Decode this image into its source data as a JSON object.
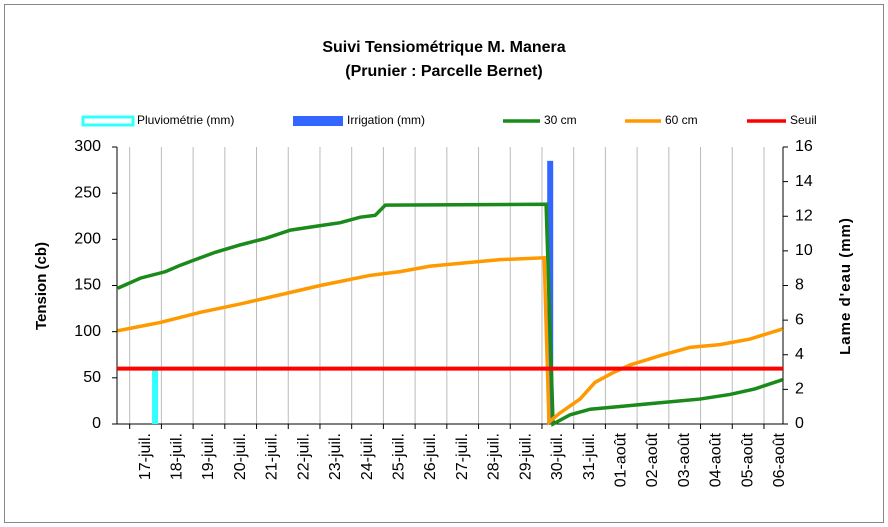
{
  "chart_data": {
    "type": "line",
    "title": "Suivi Tensiométrique M. Manera",
    "subtitle": "(Prunier : Parcelle Bernet)",
    "ylabel": "Tension (cb)",
    "y2label": "Lame d'eau (mm)",
    "xlim": [
      197.1,
      218.1
    ],
    "xticks": [
      {
        "value": 198,
        "label": "17-juil."
      },
      {
        "value": 199,
        "label": "18-juil."
      },
      {
        "value": 200,
        "label": "19-juil."
      },
      {
        "value": 201,
        "label": "20-juil."
      },
      {
        "value": 202,
        "label": "21-juil."
      },
      {
        "value": 203,
        "label": "22-juil."
      },
      {
        "value": 204,
        "label": "23-juil."
      },
      {
        "value": 205,
        "label": "24-juil."
      },
      {
        "value": 206,
        "label": "25-juil."
      },
      {
        "value": 207,
        "label": "26-juil."
      },
      {
        "value": 208,
        "label": "27-juil."
      },
      {
        "value": 209,
        "label": "28-juil."
      },
      {
        "value": 210,
        "label": "29-juil."
      },
      {
        "value": 211,
        "label": "30-juil."
      },
      {
        "value": 212,
        "label": "31-juil."
      },
      {
        "value": 213,
        "label": "01-août"
      },
      {
        "value": 214,
        "label": "02-août"
      },
      {
        "value": 215,
        "label": "03-août"
      },
      {
        "value": 216,
        "label": "04-août"
      },
      {
        "value": 217,
        "label": "05-août"
      },
      {
        "value": 218,
        "label": "06-août"
      }
    ],
    "ylim": [
      0,
      300
    ],
    "yticks": [
      0,
      50,
      100,
      150,
      200,
      250,
      300
    ],
    "y2lim": [
      0,
      16
    ],
    "y2ticks": [
      0,
      2,
      4,
      6,
      8,
      10,
      12,
      14,
      16
    ],
    "grid": "x",
    "legend": "top",
    "series": [
      {
        "name": "Pluviométrie (mm)",
        "type": "bar",
        "axis": "y2",
        "color": "#33ffff",
        "x": [
          198.3
        ],
        "values": [
          3.1
        ]
      },
      {
        "name": "Irrigation (mm)",
        "type": "bar",
        "axis": "y2",
        "color": "#3366ff",
        "x": [
          210.76
        ],
        "values": [
          15.2
        ]
      },
      {
        "name": "30 cm",
        "type": "line",
        "color": "#1a8a1a",
        "x": [
          197.12,
          197.84,
          198.63,
          199.1,
          199.57,
          200.2,
          200.99,
          201.78,
          202.57,
          203.35,
          204.14,
          204.77,
          205.24,
          205.56,
          210.63,
          210.85,
          211.39,
          212.02,
          212.96,
          214.22,
          215.48,
          216.43,
          217.21,
          218.09
        ],
        "values": [
          147,
          158,
          165,
          172,
          178,
          186,
          194,
          201,
          210,
          214,
          218,
          224,
          226,
          237,
          238,
          0,
          10,
          16,
          19,
          23,
          27,
          32,
          38,
          48
        ]
      },
      {
        "name": "60 cm",
        "type": "line",
        "color": "#ff9900",
        "x": [
          197.12,
          198.47,
          199.73,
          200.99,
          202.25,
          203.51,
          205.09,
          206.03,
          206.98,
          208.24,
          209.18,
          210.57,
          210.72,
          211.07,
          211.7,
          212.17,
          212.71,
          213.28,
          214.22,
          215.17,
          216.11,
          217.06,
          218.09
        ],
        "values": [
          101,
          110,
          121,
          130,
          140,
          150,
          161,
          165,
          171,
          175,
          178,
          180,
          2,
          12,
          27,
          45,
          55,
          64,
          74,
          83,
          86,
          92,
          103
        ]
      },
      {
        "name": "Seuil",
        "type": "line",
        "color": "#ff0000",
        "x": [
          197.1,
          218.1
        ],
        "values": [
          60,
          60
        ]
      }
    ]
  }
}
